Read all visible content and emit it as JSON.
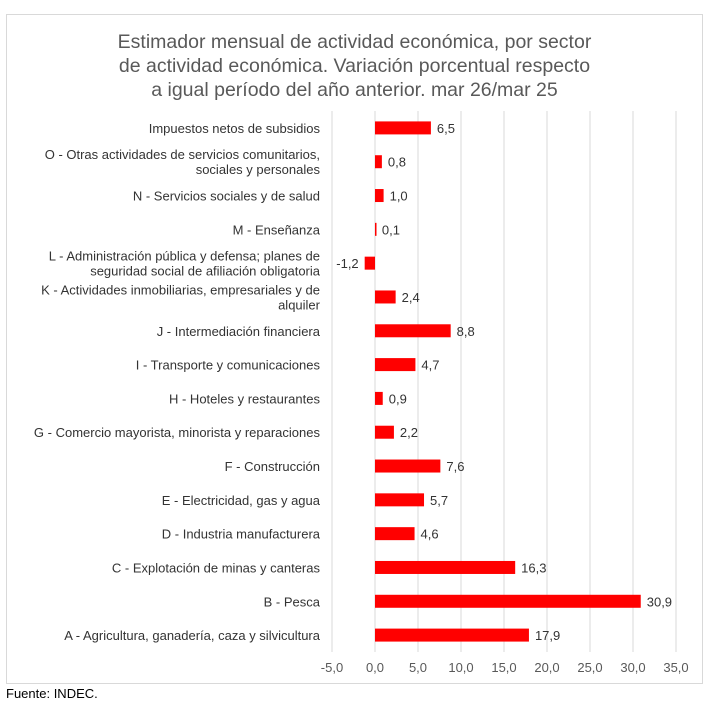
{
  "chart_data": {
    "type": "bar",
    "orientation": "horizontal",
    "title": [
      "Estimador mensual de actividad económica, por sector",
      "de actividad económica.  Variación porcentual respecto",
      "a igual período del año anterior. mar 26/mar 25"
    ],
    "categories": [
      [
        "Impuestos netos de subsidios"
      ],
      [
        "O - Otras actividades de servicios comunitarios,",
        "sociales y personales"
      ],
      [
        "N - Servicios sociales y de salud"
      ],
      [
        "M - Enseñanza"
      ],
      [
        "L - Administración pública y defensa; planes de",
        "seguridad social de afiliación obligatoria"
      ],
      [
        "K - Actividades inmobiliarias, empresariales y de",
        "alquiler"
      ],
      [
        "J - Intermediación financiera"
      ],
      [
        "I - Transporte y comunicaciones"
      ],
      [
        "H - Hoteles y restaurantes"
      ],
      [
        "G - Comercio mayorista, minorista y reparaciones"
      ],
      [
        "F - Construcción"
      ],
      [
        "E - Electricidad, gas y agua"
      ],
      [
        "D - Industria manufacturera"
      ],
      [
        "C - Explotación de minas y canteras"
      ],
      [
        "B - Pesca"
      ],
      [
        "A -  Agricultura, ganadería, caza y silvicultura"
      ]
    ],
    "values": [
      6.5,
      0.8,
      1.0,
      0.1,
      -1.2,
      2.4,
      8.8,
      4.7,
      0.9,
      2.2,
      7.6,
      5.7,
      4.6,
      16.3,
      30.9,
      17.9
    ],
    "value_labels": [
      "6,5",
      "0,8",
      "1,0",
      "0,1",
      "-1,2",
      "2,4",
      "8,8",
      "4,7",
      "0,9",
      "2,2",
      "7,6",
      "5,7",
      "4,6",
      "16,3",
      "30,9",
      "17,9"
    ],
    "xlim": [
      -5,
      35
    ],
    "xticks": [
      -5,
      0,
      5,
      10,
      15,
      20,
      25,
      30,
      35
    ],
    "xtick_labels": [
      "-5,0",
      "0,0",
      "5,0",
      "10,0",
      "15,0",
      "20,0",
      "25,0",
      "30,0",
      "35,0"
    ],
    "grid": "vertical",
    "bar_color": "#ff0000",
    "grid_color": "#d9d9d9",
    "legend": false
  },
  "source": "Fuente: INDEC."
}
